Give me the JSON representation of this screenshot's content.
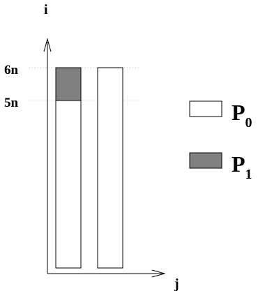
{
  "axes": {
    "vertical_label": "i",
    "horizontal_label": "j",
    "tick_labels": [
      "6n",
      "5n"
    ]
  },
  "legend": {
    "items": [
      {
        "label_base": "P",
        "label_sub": "0",
        "fill": "#ffffff"
      },
      {
        "label_base": "P",
        "label_sub": "1",
        "fill": "#808080"
      }
    ]
  },
  "colors": {
    "stroke": "#000000",
    "shaded": "#808080",
    "guide": "#bbbbbb"
  }
}
